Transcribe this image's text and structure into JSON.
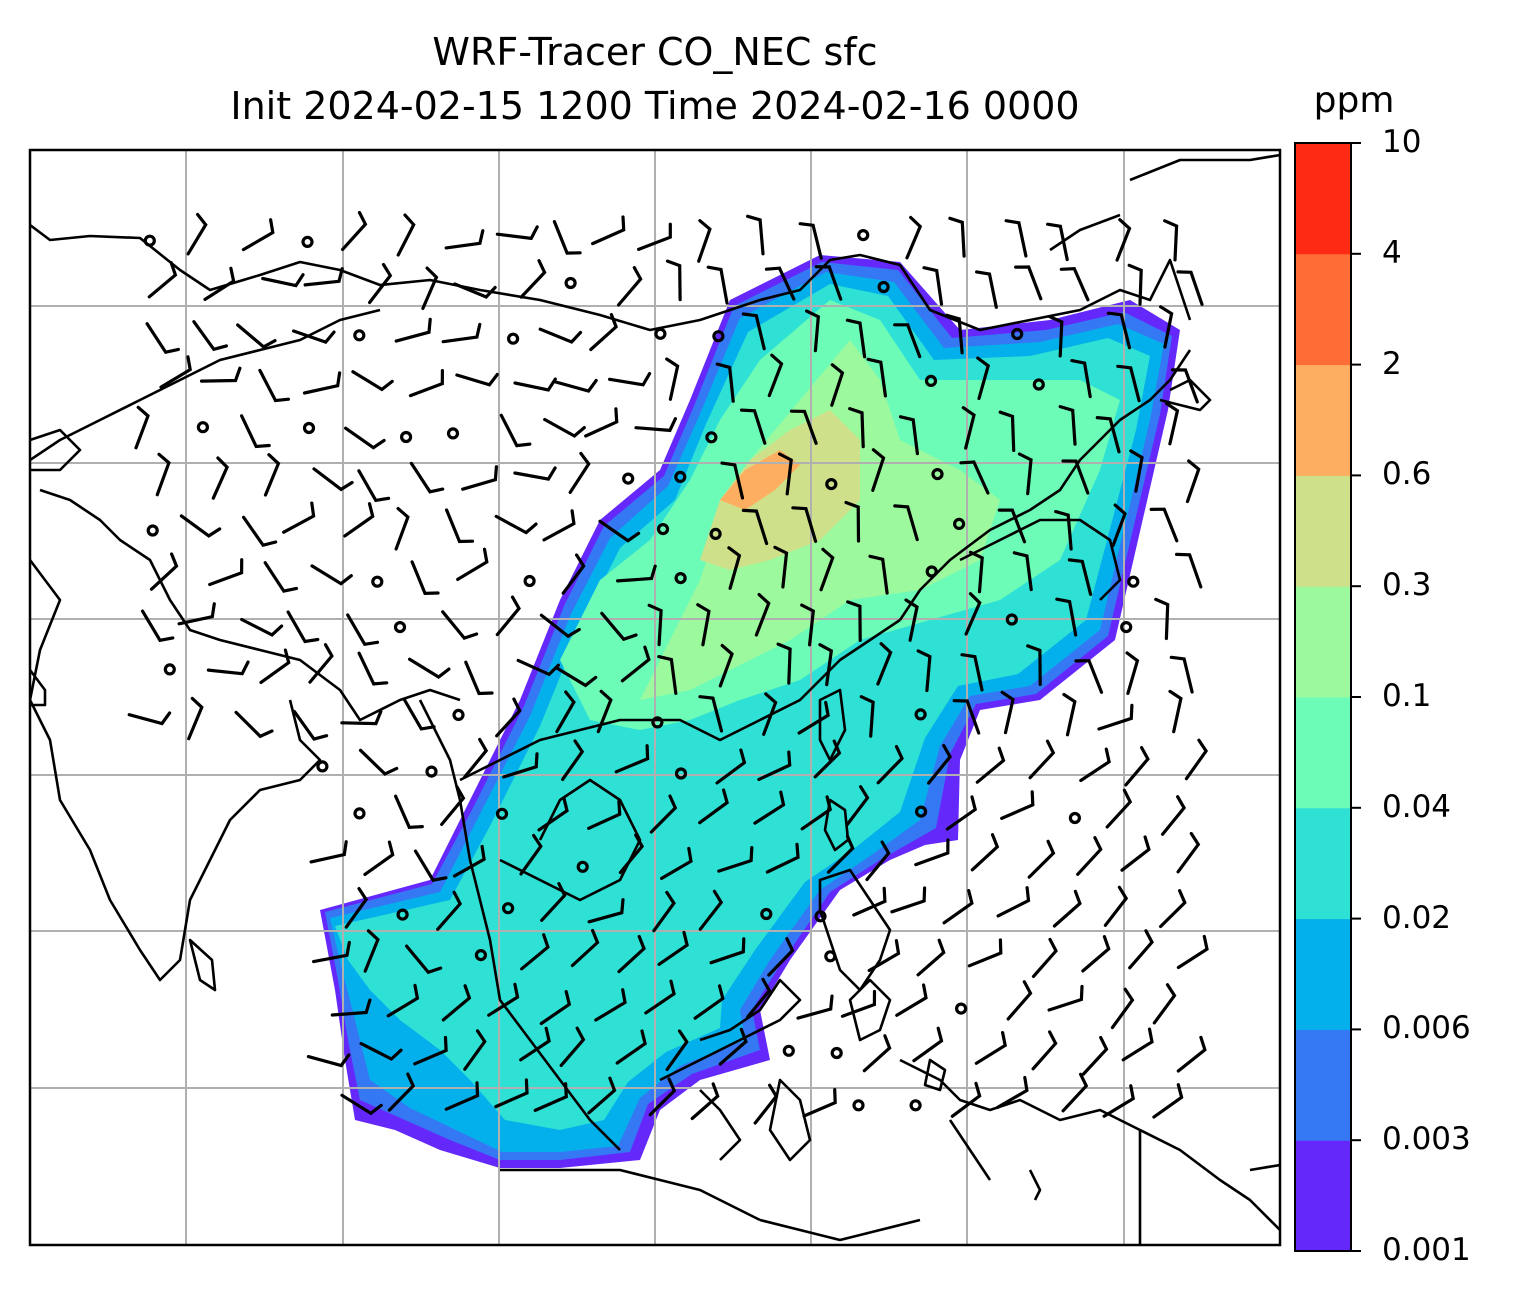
{
  "title": {
    "line1": "WRF-Tracer CO_NEC sfc",
    "line2": "Init 2024-02-15 1200 Time 2024-02-16 0000"
  },
  "colorbar": {
    "unit": "ppm",
    "ticks": [
      "10",
      "4",
      "2",
      "0.6",
      "0.3",
      "0.1",
      "0.04",
      "0.02",
      "0.006",
      "0.003",
      "0.001"
    ],
    "colors": [
      "#6528fb",
      "#3578f4",
      "#04b0eb",
      "#2fe0d4",
      "#6cfcb7",
      "#9df99e",
      "#cfe08a",
      "#fdae61",
      "#ff6d37",
      "#ff2a14"
    ]
  },
  "map": {
    "field": "CO_NEC surface tracer",
    "gridlines": true,
    "wind_barbs": true,
    "coastlines": true
  }
}
